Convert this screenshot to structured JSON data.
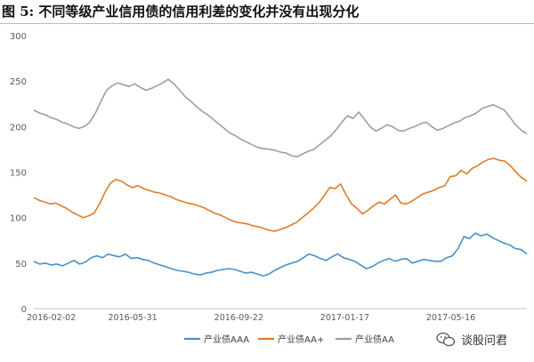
{
  "chart_data": {
    "type": "line",
    "title": "图 5:  不同等级产业信用债的信用利差的变化并没有出现分化",
    "xlabel": "",
    "ylabel": "",
    "ylim": [
      0,
      300
    ],
    "yticks": [
      0,
      50,
      100,
      150,
      200,
      250,
      300
    ],
    "xticklabels": [
      "2016-02-02",
      "2016-05-31",
      "2016-09-22",
      "2017-01-17",
      "2017-05-16"
    ],
    "grid": false,
    "legend_position": "bottom",
    "series": [
      {
        "name": "产业债AAA",
        "color": "#4a8fc8",
        "values": [
          52,
          49,
          50,
          48,
          49,
          47,
          50,
          53,
          49,
          51,
          56,
          58,
          56,
          60,
          58,
          57,
          60,
          55,
          56,
          54,
          53,
          50,
          48,
          46,
          44,
          42,
          41,
          40,
          38,
          37,
          39,
          40,
          42,
          43,
          44,
          43,
          41,
          39,
          40,
          38,
          36,
          38,
          42,
          45,
          48,
          50,
          52,
          56,
          60,
          58,
          55,
          53,
          57,
          60,
          56,
          54,
          52,
          48,
          44,
          46,
          50,
          53,
          55,
          52,
          54,
          55,
          50,
          52,
          54,
          53,
          52,
          52,
          56,
          58,
          66,
          79,
          77,
          83,
          80,
          82,
          78,
          75,
          72,
          70,
          66,
          65,
          60
        ]
      },
      {
        "name": "产业债AA+",
        "color": "#e07b2a",
        "values": [
          122,
          119,
          117,
          115,
          116,
          113,
          110,
          106,
          103,
          100,
          102,
          105,
          115,
          128,
          138,
          142,
          140,
          136,
          133,
          135,
          132,
          130,
          128,
          127,
          125,
          123,
          120,
          118,
          116,
          115,
          113,
          111,
          108,
          105,
          103,
          100,
          97,
          95,
          94,
          93,
          91,
          90,
          88,
          86,
          85,
          87,
          89,
          92,
          95,
          100,
          105,
          110,
          116,
          124,
          133,
          132,
          137,
          125,
          115,
          110,
          104,
          108,
          113,
          117,
          115,
          120,
          125,
          116,
          115,
          118,
          122,
          126,
          128,
          130,
          133,
          135,
          145,
          146,
          152,
          148,
          154,
          157,
          161,
          164,
          165,
          163,
          162,
          157,
          150,
          144,
          140
        ]
      },
      {
        "name": "产业债AA",
        "color": "#9e9e9e",
        "values": [
          218,
          215,
          213,
          210,
          208,
          205,
          203,
          200,
          198,
          200,
          205,
          215,
          228,
          240,
          245,
          248,
          246,
          244,
          247,
          243,
          240,
          242,
          245,
          248,
          252,
          247,
          240,
          233,
          228,
          222,
          217,
          213,
          208,
          203,
          198,
          193,
          190,
          186,
          183,
          180,
          177,
          176,
          175,
          174,
          172,
          171,
          168,
          167,
          170,
          173,
          175,
          180,
          185,
          190,
          197,
          205,
          212,
          209,
          216,
          208,
          200,
          195,
          198,
          202,
          200,
          196,
          195,
          198,
          200,
          203,
          205,
          200,
          196,
          198,
          201,
          204,
          206,
          210,
          212,
          215,
          220,
          222,
          224,
          221,
          218,
          210,
          202,
          196,
          192
        ]
      }
    ]
  },
  "watermark": "谈股问君"
}
